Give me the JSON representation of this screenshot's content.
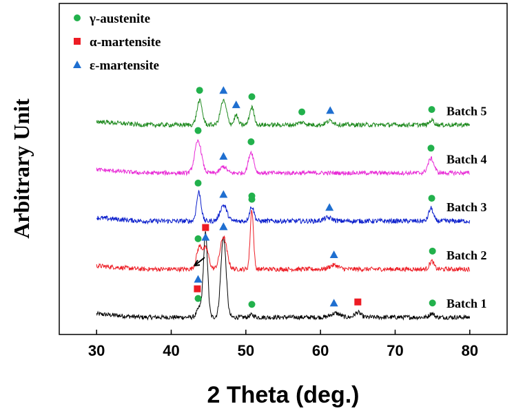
{
  "chart_data": {
    "type": "line",
    "xlabel": "2 Theta (deg.)",
    "ylabel": "Arbitrary Unit",
    "xlim": [
      25,
      85
    ],
    "xticks": [
      30,
      40,
      50,
      60,
      70,
      80
    ],
    "y_ticks_shown": false,
    "grid": false,
    "legend_position": "top-left",
    "legend": [
      {
        "label": "γ-austenite",
        "marker": "circle",
        "color": "#22b14c"
      },
      {
        "label": "α-martensite",
        "marker": "square",
        "color": "#ed1c24"
      },
      {
        "label": "ε-martensite",
        "marker": "triangle",
        "color": "#1f6fd0"
      }
    ],
    "x_range": [
      30,
      80
    ],
    "series": [
      {
        "name": "Batch 1",
        "color": "#000000",
        "baseline": 0,
        "noise": 1.4,
        "peaks": [
          [
            43.8,
            6,
            0.35
          ],
          [
            44.6,
            52,
            0.28
          ],
          [
            47.0,
            50,
            0.35
          ],
          [
            50.8,
            1.5,
            0.3
          ],
          [
            62.0,
            2.5,
            0.6
          ],
          [
            65.0,
            3,
            0.4
          ],
          [
            74.9,
            2.5,
            0.3
          ]
        ],
        "markers": [
          {
            "x": 43.6,
            "type": "circle"
          },
          {
            "x": 43.5,
            "type": "square"
          },
          {
            "x": 43.6,
            "type": "triangle"
          },
          {
            "x": 47.0,
            "type": "triangle"
          },
          {
            "x": 50.8,
            "type": "circle"
          },
          {
            "x": 61.8,
            "type": "triangle"
          },
          {
            "x": 65.0,
            "type": "square"
          },
          {
            "x": 75.0,
            "type": "circle"
          }
        ]
      },
      {
        "name": "Batch 2",
        "color": "#ed1c24",
        "baseline": 30,
        "noise": 1.4,
        "peaks": [
          [
            43.8,
            14,
            0.4
          ],
          [
            44.7,
            12,
            0.35
          ],
          [
            47.0,
            20,
            0.45
          ],
          [
            50.8,
            37,
            0.22
          ],
          [
            61.8,
            2.5,
            0.6
          ],
          [
            74.9,
            5,
            0.3
          ]
        ],
        "markers": [
          {
            "x": 43.6,
            "type": "circle"
          },
          {
            "x": 44.6,
            "type": "triangle"
          },
          {
            "x": 44.6,
            "type": "square"
          },
          {
            "x": 47.0,
            "type": "triangle"
          },
          {
            "x": 50.8,
            "type": "circle"
          },
          {
            "x": 61.8,
            "type": "triangle"
          },
          {
            "x": 75.0,
            "type": "circle"
          }
        ]
      },
      {
        "name": "Batch 3",
        "color": "#0a1ecc",
        "baseline": 60,
        "noise": 1.5,
        "peaks": [
          [
            43.7,
            18,
            0.3
          ],
          [
            47.0,
            10,
            0.45
          ],
          [
            50.8,
            9,
            0.3
          ],
          [
            61.0,
            2,
            0.6
          ],
          [
            74.8,
            8,
            0.3
          ]
        ],
        "markers": [
          {
            "x": 43.6,
            "type": "circle"
          },
          {
            "x": 47.0,
            "type": "triangle"
          },
          {
            "x": 50.8,
            "type": "circle"
          },
          {
            "x": 61.2,
            "type": "triangle"
          },
          {
            "x": 74.9,
            "type": "circle"
          }
        ]
      },
      {
        "name": "Batch 4",
        "color": "#e82ad6",
        "baseline": 90,
        "noise": 1.3,
        "peaks": [
          [
            43.6,
            20,
            0.45
          ],
          [
            47.0,
            4,
            0.4
          ],
          [
            50.7,
            13,
            0.35
          ],
          [
            74.8,
            9,
            0.4
          ]
        ],
        "markers": [
          {
            "x": 43.6,
            "type": "circle"
          },
          {
            "x": 47.0,
            "type": "triangle"
          },
          {
            "x": 50.7,
            "type": "circle"
          },
          {
            "x": 74.8,
            "type": "circle"
          }
        ]
      },
      {
        "name": "Batch 5",
        "color": "#1f8a1f",
        "baseline": 120,
        "noise": 1.4,
        "peaks": [
          [
            43.8,
            15,
            0.35
          ],
          [
            47.0,
            15,
            0.4
          ],
          [
            48.7,
            6,
            0.25
          ],
          [
            50.8,
            11,
            0.3
          ],
          [
            57.5,
            1.5,
            0.5
          ],
          [
            61.3,
            2.5,
            0.5
          ],
          [
            74.9,
            3,
            0.3
          ]
        ],
        "markers": [
          {
            "x": 43.8,
            "type": "circle"
          },
          {
            "x": 47.0,
            "type": "triangle"
          },
          {
            "x": 48.7,
            "type": "triangle"
          },
          {
            "x": 50.8,
            "type": "circle"
          },
          {
            "x": 57.5,
            "type": "circle"
          },
          {
            "x": 61.3,
            "type": "triangle"
          },
          {
            "x": 74.9,
            "type": "circle"
          }
        ]
      }
    ]
  }
}
